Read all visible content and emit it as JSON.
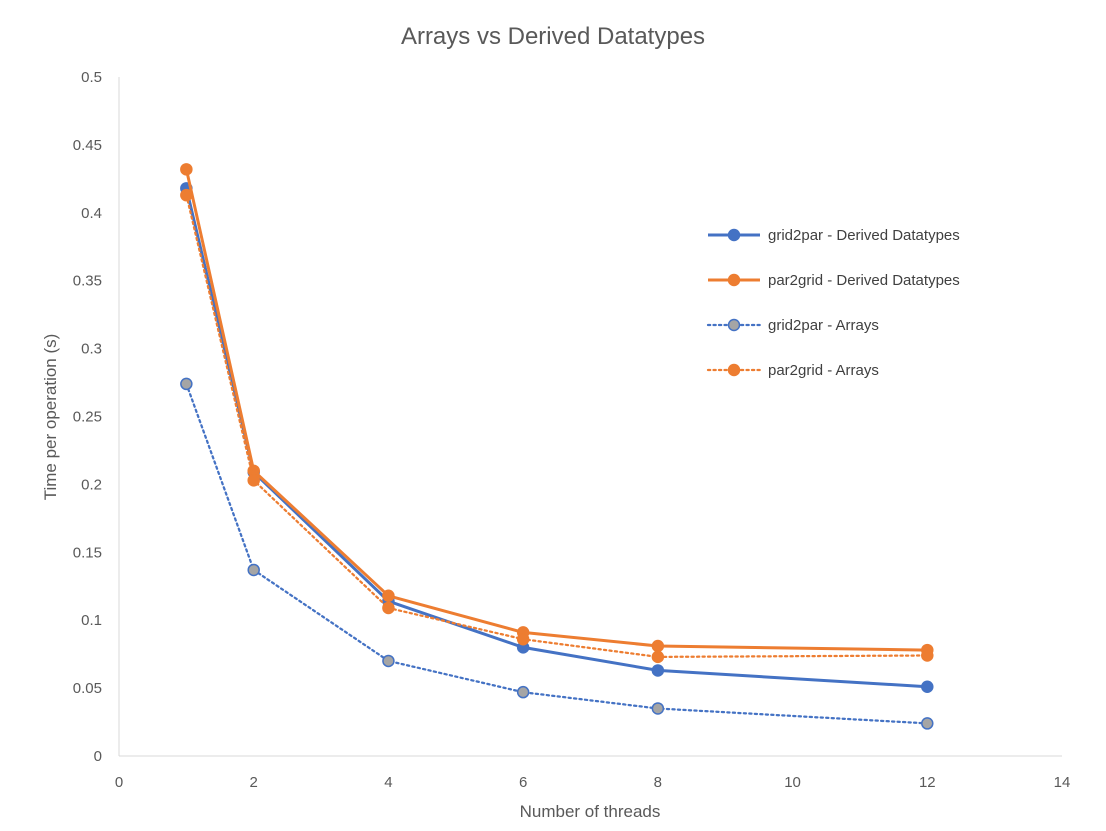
{
  "chart_data": {
    "type": "line",
    "title": "Arrays vs Derived Datatypes",
    "xlabel": "Number of threads",
    "ylabel": "Time per operation (s)",
    "xlim": [
      0,
      14
    ],
    "ylim": [
      0,
      0.5
    ],
    "x_ticks": [
      "0",
      "2",
      "4",
      "6",
      "8",
      "10",
      "12",
      "14"
    ],
    "y_ticks": [
      "0",
      "0.05",
      "0.1",
      "0.15",
      "0.2",
      "0.25",
      "0.3",
      "0.35",
      "0.4",
      "0.45",
      "0.5"
    ],
    "grid": false,
    "legend_position": "right",
    "x": [
      1,
      2,
      4,
      6,
      8,
      12
    ],
    "series": [
      {
        "name": "grid2par - Derived Datatypes",
        "values": [
          0.418,
          0.209,
          0.114,
          0.08,
          0.063,
          0.051
        ],
        "color": "#4472C4",
        "line_style": "solid",
        "marker_fill": "#4472C4"
      },
      {
        "name": "par2grid - Derived Datatypes",
        "values": [
          0.432,
          0.21,
          0.118,
          0.091,
          0.081,
          0.078
        ],
        "color": "#ED7D31",
        "line_style": "solid",
        "marker_fill": "#ED7D31"
      },
      {
        "name": "grid2par - Arrays",
        "values": [
          0.274,
          0.137,
          0.07,
          0.047,
          0.035,
          0.024
        ],
        "color": "#4472C4",
        "line_style": "dotted",
        "marker_fill": "#A5A5A5"
      },
      {
        "name": "par2grid - Arrays",
        "values": [
          0.413,
          0.203,
          0.109,
          0.086,
          0.073,
          0.074
        ],
        "color": "#ED7D31",
        "line_style": "dotted",
        "marker_fill": "#ED7D31"
      }
    ]
  }
}
